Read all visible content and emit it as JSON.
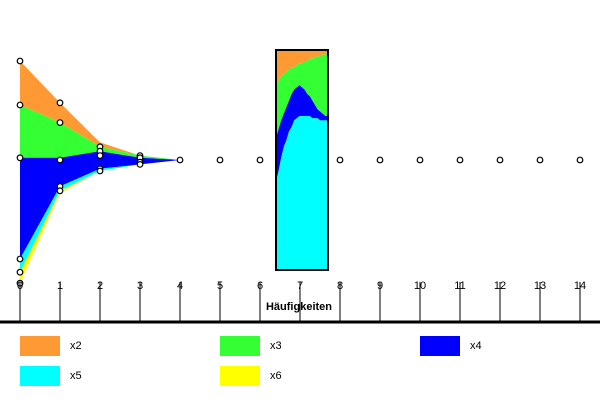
{
  "chart_data": {
    "type": "area",
    "title": "",
    "xlabel": "Häufigkeiten",
    "ylabel": "",
    "x_ticks": [
      "0",
      "1",
      "2",
      "3",
      "4",
      "5",
      "6",
      "7",
      "8",
      "9",
      "10",
      "11",
      "12",
      "13",
      "14"
    ],
    "xlim": [
      0,
      14
    ],
    "series": [
      {
        "name": "x2",
        "color": "#ff9933"
      },
      {
        "name": "x3",
        "color": "#33ff33"
      },
      {
        "name": "x4",
        "color": "#0000ff"
      },
      {
        "name": "x5",
        "color": "#00ffff"
      },
      {
        "name": "x6",
        "color": "#ffff00"
      }
    ],
    "stream_x": [
      0,
      1,
      2,
      3,
      4
    ],
    "stream_bounds": [
      [
        0.95,
        0.76,
        0.58,
        0.52,
        0.5
      ],
      [
        0.75,
        0.67,
        0.56,
        0.52,
        0.5
      ],
      [
        0.51,
        0.51,
        0.54,
        0.51,
        0.5
      ],
      [
        0.05,
        0.38,
        0.46,
        0.48,
        0.5
      ],
      [
        -0.01,
        0.36,
        0.45,
        0.48,
        0.5
      ],
      [
        -0.06,
        0.35,
        0.45,
        0.48,
        0.5
      ]
    ],
    "markers": [
      {
        "x": 0,
        "y": [
          0.95,
          0.75,
          0.51,
          0.05,
          -0.01,
          -0.06
        ]
      },
      {
        "x": 1,
        "y": [
          0.76,
          0.67,
          0.5,
          0.38,
          0.36
        ]
      },
      {
        "x": 2,
        "y": [
          0.56,
          0.54,
          0.52,
          0.46,
          0.45
        ]
      },
      {
        "x": 3,
        "y": [
          0.52,
          0.51,
          0.49,
          0.48
        ]
      },
      {
        "x": 4,
        "y": [
          0.5
        ]
      },
      {
        "x": 5,
        "y": [
          0.5
        ]
      },
      {
        "x": 6,
        "y": [
          0.5
        ]
      },
      {
        "x": 8,
        "y": [
          0.5
        ]
      },
      {
        "x": 9,
        "y": [
          0.5
        ]
      },
      {
        "x": 10,
        "y": [
          0.5
        ]
      },
      {
        "x": 11,
        "y": [
          0.5
        ]
      },
      {
        "x": 12,
        "y": [
          0.5
        ]
      },
      {
        "x": 13,
        "y": [
          0.5
        ]
      },
      {
        "x": 14,
        "y": [
          0.5
        ]
      }
    ],
    "zoom": {
      "x_range": [
        6.4,
        7.7
      ],
      "zx": [
        0,
        0.05,
        0.1,
        0.15,
        0.2,
        0.25,
        0.3,
        0.35,
        0.4,
        0.45,
        0.5,
        0.55,
        0.6,
        0.65,
        0.7,
        0.75,
        0.8,
        0.85,
        0.9,
        0.95,
        1.0
      ],
      "bounds": [
        [
          1.0,
          1.0,
          1.0,
          1.0,
          1.0,
          1.0,
          1.0,
          1.0,
          1.0,
          1.0,
          1.0,
          1.0,
          1.0,
          1.0,
          1.0,
          1.0,
          1.0,
          1.0,
          1.0,
          1.0,
          1.0
        ],
        [
          0.82,
          0.86,
          0.88,
          0.89,
          0.9,
          0.91,
          0.92,
          0.92,
          0.93,
          0.94,
          0.94,
          0.95,
          0.95,
          0.96,
          0.96,
          0.97,
          0.97,
          0.97,
          0.98,
          0.98,
          0.98
        ],
        [
          0.6,
          0.64,
          0.68,
          0.71,
          0.74,
          0.77,
          0.8,
          0.82,
          0.83,
          0.84,
          0.83,
          0.82,
          0.8,
          0.79,
          0.77,
          0.75,
          0.73,
          0.72,
          0.71,
          0.7,
          0.7
        ],
        [
          0.4,
          0.45,
          0.51,
          0.56,
          0.59,
          0.63,
          0.65,
          0.68,
          0.69,
          0.7,
          0.7,
          0.7,
          0.7,
          0.7,
          0.69,
          0.69,
          0.69,
          0.68,
          0.68,
          0.68,
          0.68
        ],
        [
          0.0,
          0.0,
          0.0,
          0.0,
          0.0,
          0.0,
          0.0,
          0.0,
          0.0,
          0.0,
          0.0,
          0.0,
          0.0,
          0.0,
          0.0,
          0.0,
          0.0,
          0.0,
          0.0,
          0.0,
          0.0
        ]
      ],
      "series_index": [
        0,
        1,
        2,
        3
      ]
    }
  }
}
